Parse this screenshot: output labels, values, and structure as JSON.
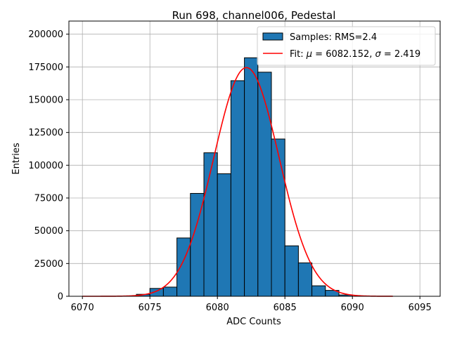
{
  "chart_data": {
    "type": "bar",
    "title": "Run 698, channel006, Pedestal",
    "xlabel": "ADC Counts",
    "ylabel": "Entries",
    "xlim": [
      6069,
      6096.5
    ],
    "ylim": [
      0,
      210000
    ],
    "xticks": [
      6070,
      6075,
      6080,
      6085,
      6090,
      6095
    ],
    "yticks": [
      0,
      25000,
      50000,
      75000,
      100000,
      125000,
      150000,
      175000,
      200000
    ],
    "grid": true,
    "legend_position": "top-right",
    "histogram": {
      "name": "Samples: RMS=2.4",
      "color": "#1f77b4",
      "edgecolor": "#000000",
      "bin_width": 1,
      "bins": [
        {
          "x0": 6074,
          "value": 1500
        },
        {
          "x0": 6075,
          "value": 6000
        },
        {
          "x0": 6076,
          "value": 7000
        },
        {
          "x0": 6077,
          "value": 44500
        },
        {
          "x0": 6078,
          "value": 78500
        },
        {
          "x0": 6079,
          "value": 109500
        },
        {
          "x0": 6080,
          "value": 93500
        },
        {
          "x0": 6081,
          "value": 164500
        },
        {
          "x0": 6082,
          "value": 182000
        },
        {
          "x0": 6083,
          "value": 171000
        },
        {
          "x0": 6084,
          "value": 120000
        },
        {
          "x0": 6085,
          "value": 38500
        },
        {
          "x0": 6086,
          "value": 25500
        },
        {
          "x0": 6087,
          "value": 8000
        },
        {
          "x0": 6088,
          "value": 4500
        },
        {
          "x0": 6089,
          "value": 1000
        }
      ]
    },
    "fit": {
      "name_prefix": "Fit: ",
      "name_mu_label": "μ",
      "name_mu_value": " = 6082.152, ",
      "name_sigma_label": "σ",
      "name_sigma_value": " = 2.419",
      "color": "#ff0000",
      "mu": 6082.152,
      "sigma": 2.419,
      "amplitude": 174500,
      "x_range": [
        6070,
        6093
      ]
    }
  }
}
